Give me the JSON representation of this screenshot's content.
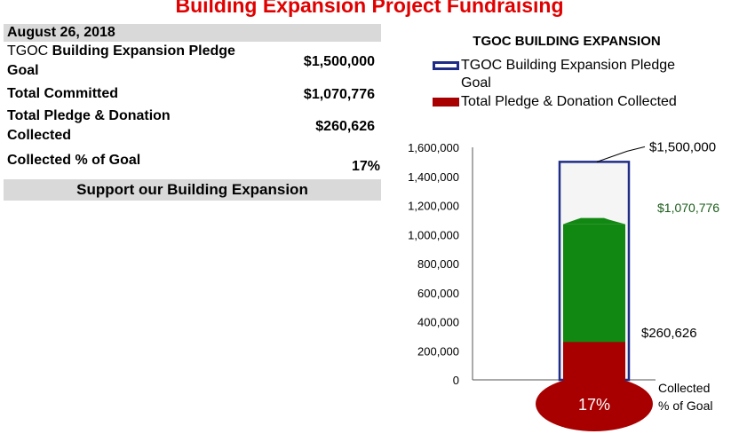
{
  "page": {
    "title": "Building Expansion Project Fundraising",
    "date": "August 26, 2018",
    "rows": [
      {
        "label_prefix": "TGOC",
        "label": " Building Expansion  Pledge",
        "label_line2": "Goal",
        "value": "$1,500,000"
      },
      {
        "label": "Total Committed",
        "value": "$1,070,776"
      },
      {
        "label": "Total Pledge & Donation",
        "label_line2": "Collected",
        "value": "$260,626"
      },
      {
        "label": "Collected % of Goal",
        "value": "17%"
      }
    ],
    "support_text": "Support our Building Expansion"
  },
  "colors": {
    "title": "#e00000",
    "goal_outline": "#1f2d86",
    "goal_fill": "#f5f5f5",
    "committed": "#118811",
    "collected": "#a80000",
    "committed_label": "#1a5c1a",
    "header_bar": "#d9d9d9"
  },
  "chart_data": {
    "type": "bar",
    "title": "TGOC BUILDING EXPANSION",
    "legend": [
      {
        "name": "TGOC Building Expansion  Pledge",
        "name_line2": "Goal",
        "style": "outline"
      },
      {
        "name": "Total Pledge & Donation Collected",
        "style": "filled"
      }
    ],
    "legend_placement": "top",
    "ylim": [
      0,
      1600000
    ],
    "yticks": [
      0,
      200000,
      400000,
      600000,
      800000,
      1000000,
      1200000,
      1400000,
      1600000
    ],
    "ytick_labels": [
      "0",
      "200,000",
      "400,000",
      "600,000",
      "800,000",
      "1,000,000",
      "1,200,000",
      "1,400,000",
      "1,600,000"
    ],
    "grid": false,
    "series": [
      {
        "name": "TGOC Building Expansion  Pledge Goal",
        "value": 1500000,
        "label": "$1,500,000"
      },
      {
        "name": "Total Committed",
        "value": 1070776,
        "label": "$1,070,776"
      },
      {
        "name": "Total Pledge & Donation Collected",
        "value": 260626,
        "label": "$260,626"
      }
    ],
    "bulb": {
      "percent": 17,
      "label": "17%",
      "caption_line1": "Collected",
      "caption_line2": "% of Goal"
    }
  }
}
